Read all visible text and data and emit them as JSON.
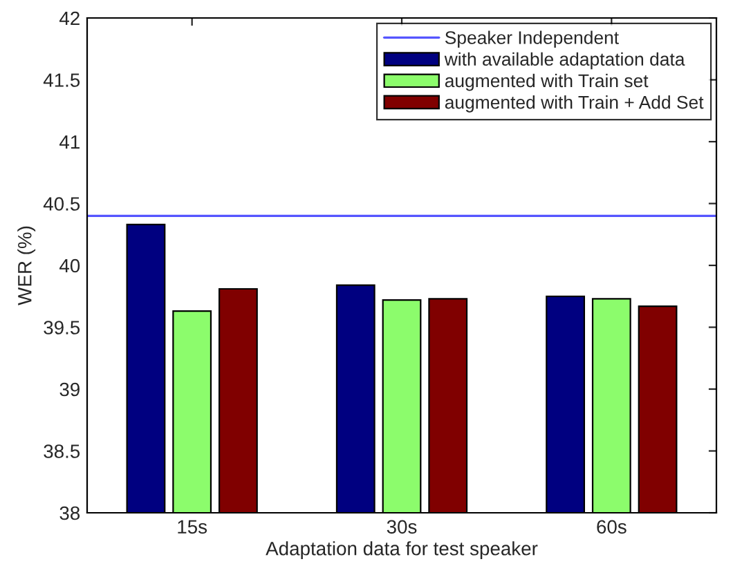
{
  "chart_data": {
    "type": "bar",
    "xlabel": "Adaptation data for test speaker",
    "ylabel": "WER (%)",
    "categories": [
      "15s",
      "30s",
      "60s"
    ],
    "series": [
      {
        "name": "with available adaptation data",
        "color": "#000080",
        "values": [
          40.33,
          39.84,
          39.75
        ]
      },
      {
        "name": "augmented with Train set",
        "color": "#8cfc6c",
        "values": [
          39.63,
          39.72,
          39.73
        ]
      },
      {
        "name": "augmented with Train + Add Set",
        "color": "#800000",
        "values": [
          39.81,
          39.73,
          39.67
        ]
      }
    ],
    "ylim": [
      38,
      42
    ],
    "yticks": [
      38,
      38.5,
      39,
      39.5,
      40,
      40.5,
      41,
      41.5,
      42
    ],
    "ref_lines": [
      {
        "axis": "y",
        "value": 40.4,
        "label": "Speaker Independent",
        "color": "#5555ff",
        "line_style": "solid"
      }
    ],
    "legend": "top right",
    "grid": false
  }
}
